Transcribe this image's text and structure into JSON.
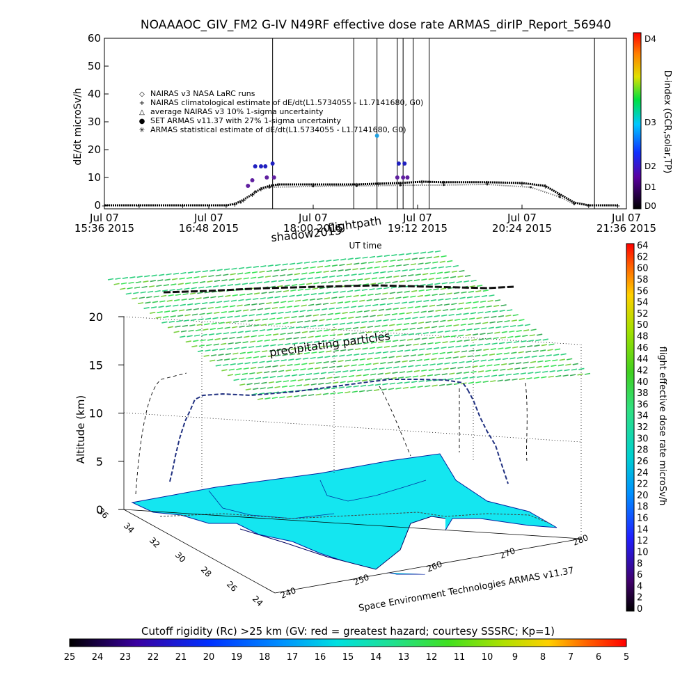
{
  "header": {
    "title": "NOAAAOC_GIV_FM2 G-IV    N49RF   effective dose rate ARMAS_dirIP_Report_56940"
  },
  "colors": {
    "neairas_marker": "#000000",
    "armas_marker": "#2020c0",
    "particles": "#44d670",
    "land": "#14e6f0",
    "coast": "#000080"
  },
  "timeseries": {
    "ylabel": "dE/dt microSv/h",
    "xlabel": "UT time",
    "y_ticks": [
      "0",
      "10",
      "20",
      "30",
      "40",
      "50",
      "60"
    ],
    "x_ticks": [
      {
        "date": "Jul 07",
        "time": "15:36 2015"
      },
      {
        "date": "Jul 07",
        "time": "16:48 2015"
      },
      {
        "date": "Jul 07",
        "time": "18:00 2015"
      },
      {
        "date": "Jul 07",
        "time": "19:12 2015"
      },
      {
        "date": "Jul 07",
        "time": "20:24 2015"
      },
      {
        "date": "Jul 07",
        "time": "21:36 2015"
      }
    ],
    "legend": [
      {
        "symbol": "◇",
        "text": "NAIRAS v3 NASA LaRC runs"
      },
      {
        "symbol": "+",
        "text": "NAIRAS climatological estimate of dE/dt(L1.5734055 - L1.7141680, G0)"
      },
      {
        "symbol": "△",
        "text": "average NAIRAS v3 10% 1-sigma uncertainty"
      },
      {
        "symbol": "●",
        "text": "SET ARMAS v11.37 with 27% 1-sigma uncertainty"
      },
      {
        "symbol": "✳",
        "text": "ARMAS statistical estimate of dE/dt(L1.5734055 - L1.7141680, G0)"
      }
    ],
    "dindex_label": "D-index (GCR,solar,TP)",
    "dindex_ticks": [
      "D0",
      "D1",
      "D2",
      "D3",
      "D4"
    ]
  },
  "chart_data": [
    {
      "type": "scatter",
      "title": "NOAAAOC_GIV_FM2 G-IV    N49RF   effective dose rate ARMAS_dirIP_Report_56940",
      "xlabel": "UT time",
      "ylabel": "dE/dt microSv/h",
      "ylim": [
        0,
        60
      ],
      "xlim": [
        "15:36",
        "21:36"
      ],
      "series": [
        {
          "name": "NAIRAS climatological estimate of dE/dt(L1.5734055 - L1.7141680, G0)",
          "points": [
            [
              "15:36",
              0
            ],
            [
              "16:00",
              0
            ],
            [
              "16:30",
              0
            ],
            [
              "17:00",
              0
            ],
            [
              "17:06",
              0.5
            ],
            [
              "17:12",
              2
            ],
            [
              "17:18",
              4
            ],
            [
              "17:24",
              6
            ],
            [
              "17:30",
              7
            ],
            [
              "17:36",
              7.5
            ],
            [
              "18:00",
              7.5
            ],
            [
              "18:30",
              7.5
            ],
            [
              "18:45",
              7.8
            ],
            [
              "19:00",
              8
            ],
            [
              "19:15",
              8.5
            ],
            [
              "19:30",
              8.3
            ],
            [
              "20:00",
              8.3
            ],
            [
              "20:24",
              8
            ],
            [
              "20:40",
              7
            ],
            [
              "20:50",
              4
            ],
            [
              "21:00",
              1
            ],
            [
              "21:10",
              0
            ],
            [
              "21:30",
              0
            ]
          ]
        },
        {
          "name": "SET ARMAS v11.37 with 27% 1-sigma uncertainty",
          "points": [
            [
              "17:15",
              7
            ],
            [
              "17:18",
              9
            ],
            [
              "17:20",
              14
            ],
            [
              "17:24",
              14
            ],
            [
              "17:27",
              14
            ],
            [
              "17:28",
              10
            ],
            [
              "17:32",
              15
            ],
            [
              "17:33",
              10
            ],
            [
              "18:44",
              25
            ],
            [
              "18:58",
              10
            ],
            [
              "18:59",
              15
            ],
            [
              "19:02",
              10
            ],
            [
              "19:03",
              15
            ],
            [
              "19:05",
              10
            ]
          ]
        },
        {
          "name": "ARMAS statistical estimate of dE/dt(L1.5734055 - L1.7141680, G0)",
          "points": [
            [
              "17:10",
              1
            ],
            [
              "17:20",
              5
            ],
            [
              "17:30",
              6.5
            ],
            [
              "18:00",
              6.8
            ],
            [
              "18:30",
              7
            ],
            [
              "19:00",
              7.2
            ],
            [
              "19:30",
              7.3
            ],
            [
              "20:00",
              7.5
            ],
            [
              "20:30",
              6.5
            ],
            [
              "20:50",
              3
            ],
            [
              "21:00",
              0.5
            ]
          ]
        }
      ]
    },
    {
      "type": "scatter",
      "title": "shadow2015   flightpath",
      "ylabel": "Altitude (km)",
      "ylim": [
        0,
        20
      ],
      "z_ticks": [
        "0",
        "5",
        "10",
        "15",
        "20"
      ],
      "lat_ticks": [
        "36",
        "34",
        "32",
        "30",
        "28",
        "26",
        "24"
      ],
      "lon_ticks": [
        "240",
        "250",
        "260",
        "270",
        "280"
      ],
      "annotation": "precipitating particles",
      "credit": "Space Environment Technologies ARMAS v11.37"
    },
    {
      "type": "heatmap",
      "title": "Cutoff rigidity (Rc) >25 km (GV: red = greatest hazard; courtesy SSSRC; Kp=1)",
      "ticks": [
        "25",
        "24",
        "23",
        "22",
        "21",
        "20",
        "19",
        "18",
        "17",
        "16",
        "15",
        "14",
        "13",
        "12",
        "11",
        "10",
        "9",
        "8",
        "7",
        "6",
        "5"
      ]
    },
    {
      "type": "heatmap",
      "title": "flight effective dose rate microSv/h",
      "ticks": [
        "0",
        "2",
        "4",
        "6",
        "8",
        "10",
        "12",
        "14",
        "16",
        "18",
        "20",
        "22",
        "24",
        "26",
        "28",
        "30",
        "32",
        "34",
        "36",
        "38",
        "40",
        "42",
        "44",
        "46",
        "48",
        "50",
        "52",
        "54",
        "56",
        "58",
        "60",
        "62",
        "64"
      ]
    }
  ],
  "labels": {
    "shadow": "shadow2015",
    "flightpath": "flightpath",
    "precip": "precipitating particles",
    "credit": "Space Environment Technologies ARMAS v11.37",
    "cutoff_title": "Cutoff rigidity (Rc) >25 km (GV: red = greatest hazard; courtesy SSSRC; Kp=1)",
    "dose_title": "flight effective dose rate microSv/h",
    "alt_label": "Altitude (km)"
  }
}
